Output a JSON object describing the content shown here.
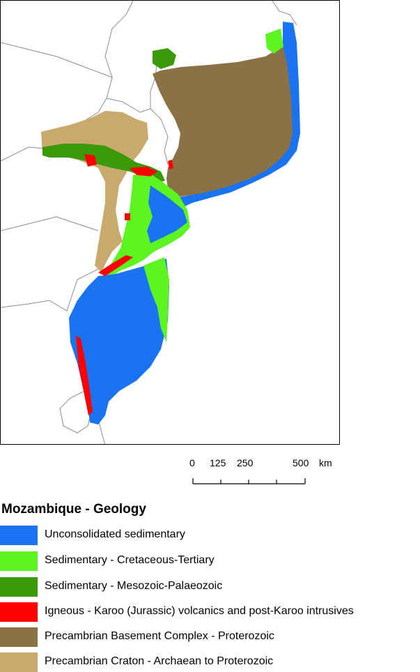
{
  "map": {
    "colors": {
      "unconsolidated": "#1a73f0",
      "cretaceous": "#5cf522",
      "mesozoic": "#3a9a0a",
      "igneous": "#ff0000",
      "basement": "#8a7246",
      "craton": "#c9a96e",
      "border": "#8c8c8c"
    }
  },
  "scale": {
    "ticks": [
      "0",
      "125",
      "250",
      "500"
    ],
    "unit": "km"
  },
  "legend": {
    "title": "Mozambique - Geology",
    "items": [
      {
        "label": "Unconsolidated sedimentary",
        "color": "#1a73f0"
      },
      {
        "label": "Sedimentary - Cretaceous-Tertiary",
        "color": "#5cf522"
      },
      {
        "label": "Sedimentary - Mesozoic-Palaeozoic",
        "color": "#3a9a0a"
      },
      {
        "label": "Igneous - Karoo (Jurassic) volcanics and post-Karoo intrusives",
        "color": "#ff0000"
      },
      {
        "label": "Precambrian Basement Complex - Proterozoic",
        "color": "#8a7246"
      },
      {
        "label": "Precambrian Craton - Archaean to Proterozoic",
        "color": "#c9a96e"
      }
    ]
  }
}
